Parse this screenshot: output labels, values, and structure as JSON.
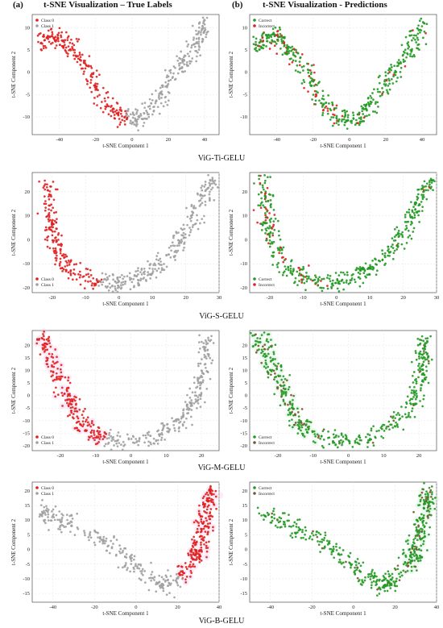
{
  "header": {
    "a_tag": "(a)",
    "a_title": "t-SNE Visualization – True Labels",
    "b_tag": "(b)",
    "b_title": "t-SNE Visualization - Predictions"
  },
  "colors": {
    "red": "#e02020",
    "gray": "#a0a0a0",
    "green": "#229922",
    "brown": "#7a5530",
    "pink": "#f7c6ea",
    "green_light": "#c8f0d4"
  },
  "rows": [
    {
      "label": "ViG-Ti-GELU"
    },
    {
      "label": "ViG-S-GELU"
    },
    {
      "label": "ViG-M-GELU"
    },
    {
      "label": "ViG-B-GELU"
    }
  ],
  "chart_data": [
    {
      "type": "scatter",
      "model": "ViG-Ti-GELU",
      "panel": "true-labels",
      "xlabel": "t-SNE Component 1",
      "ylabel": "t-SNE Component 2",
      "xlim": [
        -55,
        48
      ],
      "ylim": [
        -14,
        13
      ],
      "xticks": [
        -40,
        -20,
        0,
        20,
        40
      ],
      "yticks": [
        -10,
        -5,
        0,
        5,
        10
      ],
      "legend": "top-left",
      "legend_entries": [
        "Class 0",
        "Class 1"
      ],
      "grid": true
    },
    {
      "type": "scatter",
      "model": "ViG-Ti-GELU",
      "panel": "predictions",
      "xlabel": "t-SNE Component 1",
      "ylabel": "t-SNE Component 2",
      "xlim": [
        -55,
        48
      ],
      "ylim": [
        -14,
        13
      ],
      "xticks": [
        -40,
        -20,
        0,
        20,
        40
      ],
      "yticks": [
        -10,
        -5,
        0,
        5,
        10
      ],
      "legend": "top-left",
      "legend_entries": [
        "Correct",
        "Incorrect"
      ],
      "grid": true
    },
    {
      "type": "scatter",
      "model": "ViG-S-GELU",
      "panel": "true-labels",
      "xlabel": "t-SNE Component 1",
      "ylabel": "t-SNE Component 2",
      "xlim": [
        -26,
        30
      ],
      "ylim": [
        -22,
        28
      ],
      "xticks": [
        -20,
        -10,
        0,
        10,
        20,
        30
      ],
      "yticks": [
        -20,
        -10,
        0,
        10,
        20
      ],
      "legend": "bottom-left",
      "legend_entries": [
        "Class 0",
        "Class 1"
      ],
      "grid": true
    },
    {
      "type": "scatter",
      "model": "ViG-S-GELU",
      "panel": "predictions",
      "xlabel": "t-SNE Component 1",
      "ylabel": "t-SNE Component 2",
      "xlim": [
        -26,
        30
      ],
      "ylim": [
        -22,
        28
      ],
      "xticks": [
        -20,
        -10,
        0,
        10,
        20,
        30
      ],
      "yticks": [
        -20,
        -10,
        0,
        10,
        20
      ],
      "legend": "bottom-left",
      "legend_entries": [
        "Correct",
        "Incorrect"
      ],
      "grid": true
    },
    {
      "type": "scatter",
      "model": "ViG-M-GELU",
      "panel": "true-labels",
      "xlabel": "t-SNE Component 1",
      "ylabel": "t-SNE Component 2",
      "xlim": [
        -28,
        25
      ],
      "ylim": [
        -22,
        26
      ],
      "xticks": [
        -20,
        -10,
        0,
        10,
        20
      ],
      "yticks": [
        -20,
        -15,
        -10,
        -5,
        0,
        5,
        10,
        15,
        20
      ],
      "legend": "bottom-left",
      "legend_entries": [
        "Class 0",
        "Class 1"
      ],
      "grid": true
    },
    {
      "type": "scatter",
      "model": "ViG-M-GELU",
      "panel": "predictions",
      "xlabel": "t-SNE Component 1",
      "ylabel": "t-SNE Component 2",
      "xlim": [
        -28,
        25
      ],
      "ylim": [
        -22,
        26
      ],
      "xticks": [
        -20,
        -10,
        0,
        10,
        20
      ],
      "yticks": [
        -20,
        -15,
        -10,
        -5,
        0,
        5,
        10,
        15,
        20
      ],
      "legend": "bottom-left",
      "legend_entries": [
        "Correct",
        "Incorrect"
      ],
      "grid": true
    },
    {
      "type": "scatter",
      "model": "ViG-B-GELU",
      "panel": "true-labels",
      "xlabel": "t-SNE Component 1",
      "ylabel": "t-SNE Component 2",
      "xlim": [
        -50,
        40
      ],
      "ylim": [
        -18,
        23
      ],
      "xticks": [
        -40,
        -20,
        0,
        20,
        40
      ],
      "yticks": [
        -15,
        -10,
        -5,
        0,
        5,
        10,
        15,
        20
      ],
      "legend": "top-left",
      "legend_entries": [
        "Class 0",
        "Class 1"
      ],
      "grid": true
    },
    {
      "type": "scatter",
      "model": "ViG-B-GELU",
      "panel": "predictions",
      "xlabel": "t-SNE Component 1",
      "ylabel": "t-SNE Component 2",
      "xlim": [
        -50,
        40
      ],
      "ylim": [
        -18,
        23
      ],
      "xticks": [
        -40,
        -20,
        0,
        20,
        40
      ],
      "yticks": [
        -15,
        -10,
        -5,
        0,
        5,
        10,
        15,
        20
      ],
      "legend": "top-left",
      "legend_entries": [
        "Correct",
        "Incorrect"
      ],
      "grid": true
    }
  ]
}
